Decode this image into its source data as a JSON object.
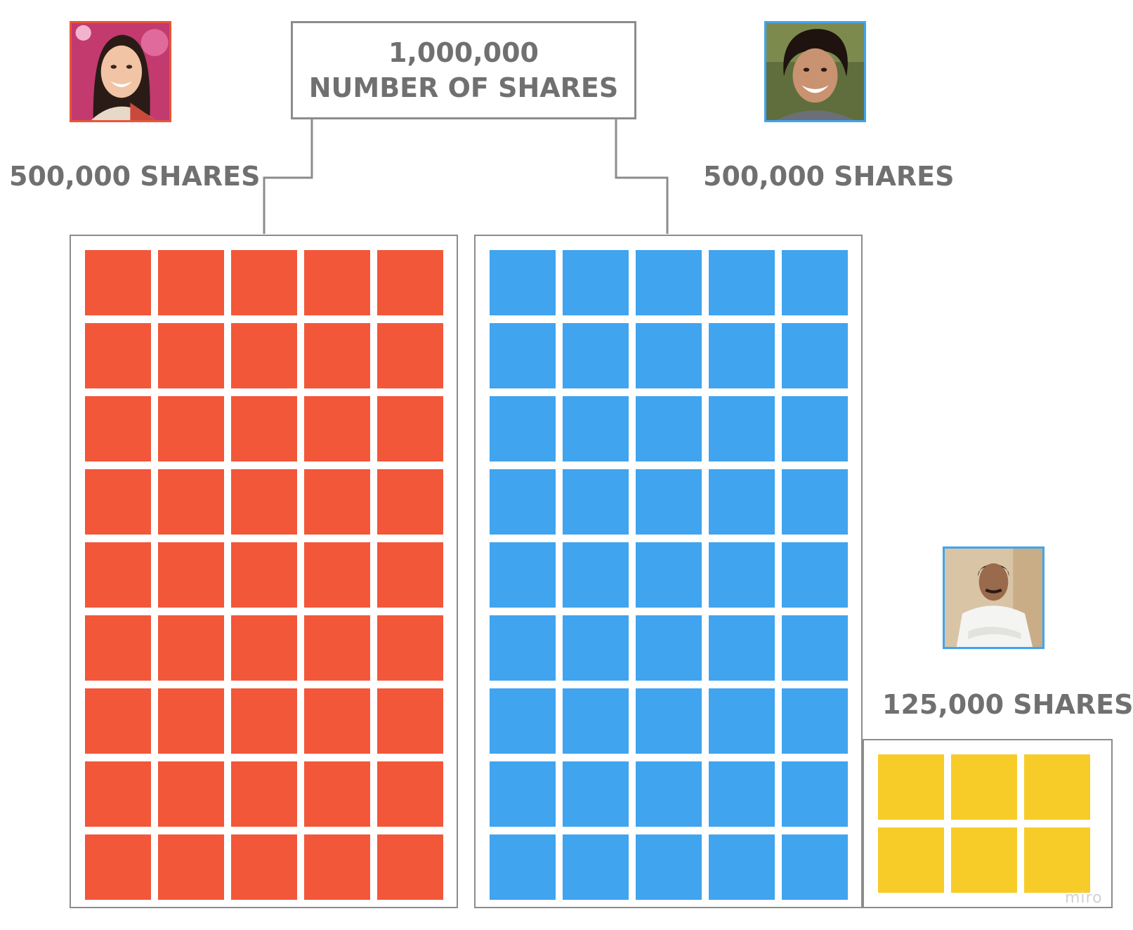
{
  "total": {
    "value": "1,000,000",
    "caption": "NUMBER OF SHARES"
  },
  "holders": [
    {
      "id": "left",
      "shares_label": "500,000 SHARES",
      "shares": 500000,
      "color": "#F2573A",
      "frame_color": "#E8553A",
      "icon": "person-photo-woman-icon",
      "grid": {
        "rows": 9,
        "cols": 5
      }
    },
    {
      "id": "mid",
      "shares_label": "500,000 SHARES",
      "shares": 500000,
      "color": "#40A4EF",
      "frame_color": "#40A4EF",
      "icon": "person-photo-man-icon",
      "grid": {
        "rows": 9,
        "cols": 5
      }
    },
    {
      "id": "right",
      "shares_label": "125,000 SHARES",
      "shares": 125000,
      "color": "#F7CC28",
      "frame_color": "#40A4EF",
      "icon": "person-photo-man-white-shirt-icon",
      "grid": {
        "rows": 2,
        "cols": 3
      }
    }
  ],
  "watermark": "miro"
}
